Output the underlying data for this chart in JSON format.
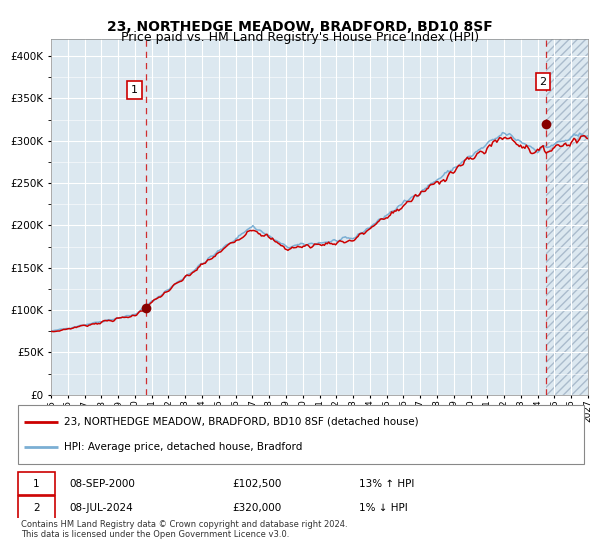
{
  "title": "23, NORTHEDGE MEADOW, BRADFORD, BD10 8SF",
  "subtitle": "Price paid vs. HM Land Registry's House Price Index (HPI)",
  "title_fontsize": 10,
  "subtitle_fontsize": 9,
  "legend_line1": "23, NORTHEDGE MEADOW, BRADFORD, BD10 8SF (detached house)",
  "legend_line2": "HPI: Average price, detached house, Bradford",
  "table_row1": [
    "1",
    "08-SEP-2000",
    "£102,500",
    "13% ↑ HPI"
  ],
  "table_row2": [
    "2",
    "08-JUL-2024",
    "£320,000",
    "1% ↓ HPI"
  ],
  "footnote": "Contains HM Land Registry data © Crown copyright and database right 2024.\nThis data is licensed under the Open Government Licence v3.0.",
  "ylim": [
    0,
    420000
  ],
  "yticks": [
    0,
    50000,
    100000,
    150000,
    200000,
    250000,
    300000,
    350000,
    400000
  ],
  "ytick_labels": [
    "£0",
    "£50K",
    "£100K",
    "£150K",
    "£200K",
    "£250K",
    "£300K",
    "£350K",
    "£400K"
  ],
  "sale1_date": 2000.69,
  "sale1_price": 102500,
  "sale2_date": 2024.52,
  "sale2_price": 320000,
  "red_line_color": "#cc0000",
  "blue_line_color": "#7bafd4",
  "plot_bg_color": "#dce8f0",
  "grid_color": "#ffffff",
  "vline_color": "#cc0000",
  "marker_color": "#880000",
  "annotation_box_color": "#cc0000",
  "year_start": 1995,
  "year_end": 2027,
  "xtick_years": [
    1995,
    1996,
    1997,
    1998,
    1999,
    2000,
    2001,
    2002,
    2003,
    2004,
    2005,
    2006,
    2007,
    2008,
    2009,
    2010,
    2011,
    2012,
    2013,
    2014,
    2015,
    2016,
    2017,
    2018,
    2019,
    2020,
    2021,
    2022,
    2023,
    2024,
    2025,
    2026,
    2027
  ]
}
